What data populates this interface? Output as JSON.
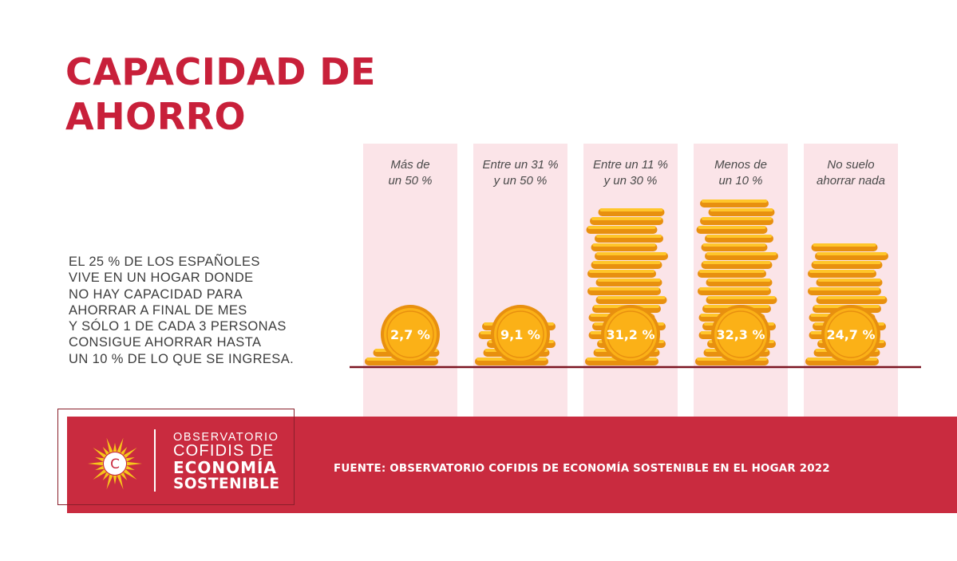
{
  "title_lines": [
    "CAPACIDAD DE",
    "AHORRO"
  ],
  "description_lines": [
    "EL 25 % DE LOS ESPAÑOLES",
    "VIVE EN UN HOGAR DONDE",
    "NO HAY CAPACIDAD PARA",
    "AHORRAR A FINAL DE MES",
    "Y SÓLO 1 DE CADA 3 PERSONAS",
    "CONSIGUE AHORRAR HASTA",
    "UN 10 % DE LO QUE SE INGRESA."
  ],
  "chart_data": {
    "type": "bar",
    "categories": [
      [
        "Más de",
        "un 50 %"
      ],
      [
        "Entre un 31 %",
        "y un 50 %"
      ],
      [
        "Entre un 11 %",
        "y un 30 %"
      ],
      [
        "Menos de",
        "un 10 %"
      ],
      [
        "No suelo",
        "ahorrar nada"
      ]
    ],
    "values": [
      2.7,
      9.1,
      31.2,
      32.3,
      24.7
    ],
    "value_labels": [
      "2,7 %",
      "9,1 %",
      "31,2 %",
      "32,3 %",
      "24,7 %"
    ],
    "unit": "%",
    "colors": {
      "column_bg": "#fbe4e8",
      "coin": "#fbb117",
      "coin_dark": "#e8900f",
      "coin_light": "#ffc62a",
      "baseline": "#7b1421"
    }
  },
  "logo": {
    "line1": "OBSERVATORIO",
    "line2": "COFIDIS DE",
    "line3": "ECONOMÍA",
    "line4": "SOSTENIBLE",
    "emblem_letter": "C"
  },
  "source": "FUENTE: OBSERVATORIO COFIDIS DE ECONOMÍA SOSTENIBLE EN EL HOGAR 2022",
  "colors": {
    "brand_red": "#c8203a",
    "footer_red": "#c92b3f",
    "text_gray": "#3d3d3d"
  }
}
